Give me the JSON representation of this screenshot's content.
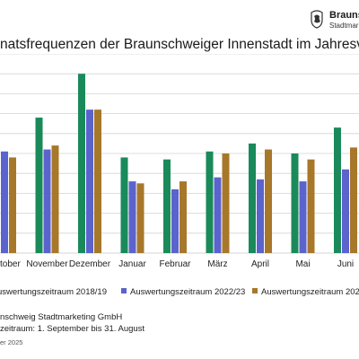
{
  "logo": {
    "name": "Brauns",
    "sub": "Stadtmark"
  },
  "footer": {
    "source": "nschweig Stadtmarketing GmbH",
    "period": "zeitraum: 1. September bis 31. August",
    "date": "er 2025"
  },
  "colors": {
    "series_2018": "#1a8a5a",
    "series_2022": "#5b63cc",
    "series_2024": "#a7772a",
    "grid": "#d4d4d4"
  },
  "chart_data": {
    "type": "bar",
    "title": "natsfrequenzen der Braunschweiger Innenstadt im Jahresver",
    "categories": [
      "Oktober",
      "November",
      "Dezember",
      "Januar",
      "Februar",
      "März",
      "April",
      "Mai",
      "Juni"
    ],
    "series": [
      {
        "name": "uswertungszeitraum 2018/19",
        "values": [
          6.6,
          6.8,
          9.0,
          4.8,
          4.7,
          5.1,
          5.5,
          5.0,
          6.3
        ]
      },
      {
        "name": "Auswertungszeitraum 2022/23",
        "values": [
          5.1,
          5.2,
          7.2,
          3.6,
          3.2,
          3.8,
          3.7,
          3.6,
          4.2
        ]
      },
      {
        "name": "Auswertungszeitraum 202",
        "values": [
          4.8,
          5.4,
          7.2,
          3.5,
          3.6,
          5.0,
          5.2,
          4.7,
          5.3
        ]
      }
    ],
    "ylim": [
      0,
      10
    ],
    "grid": true,
    "legend": "bottom"
  }
}
